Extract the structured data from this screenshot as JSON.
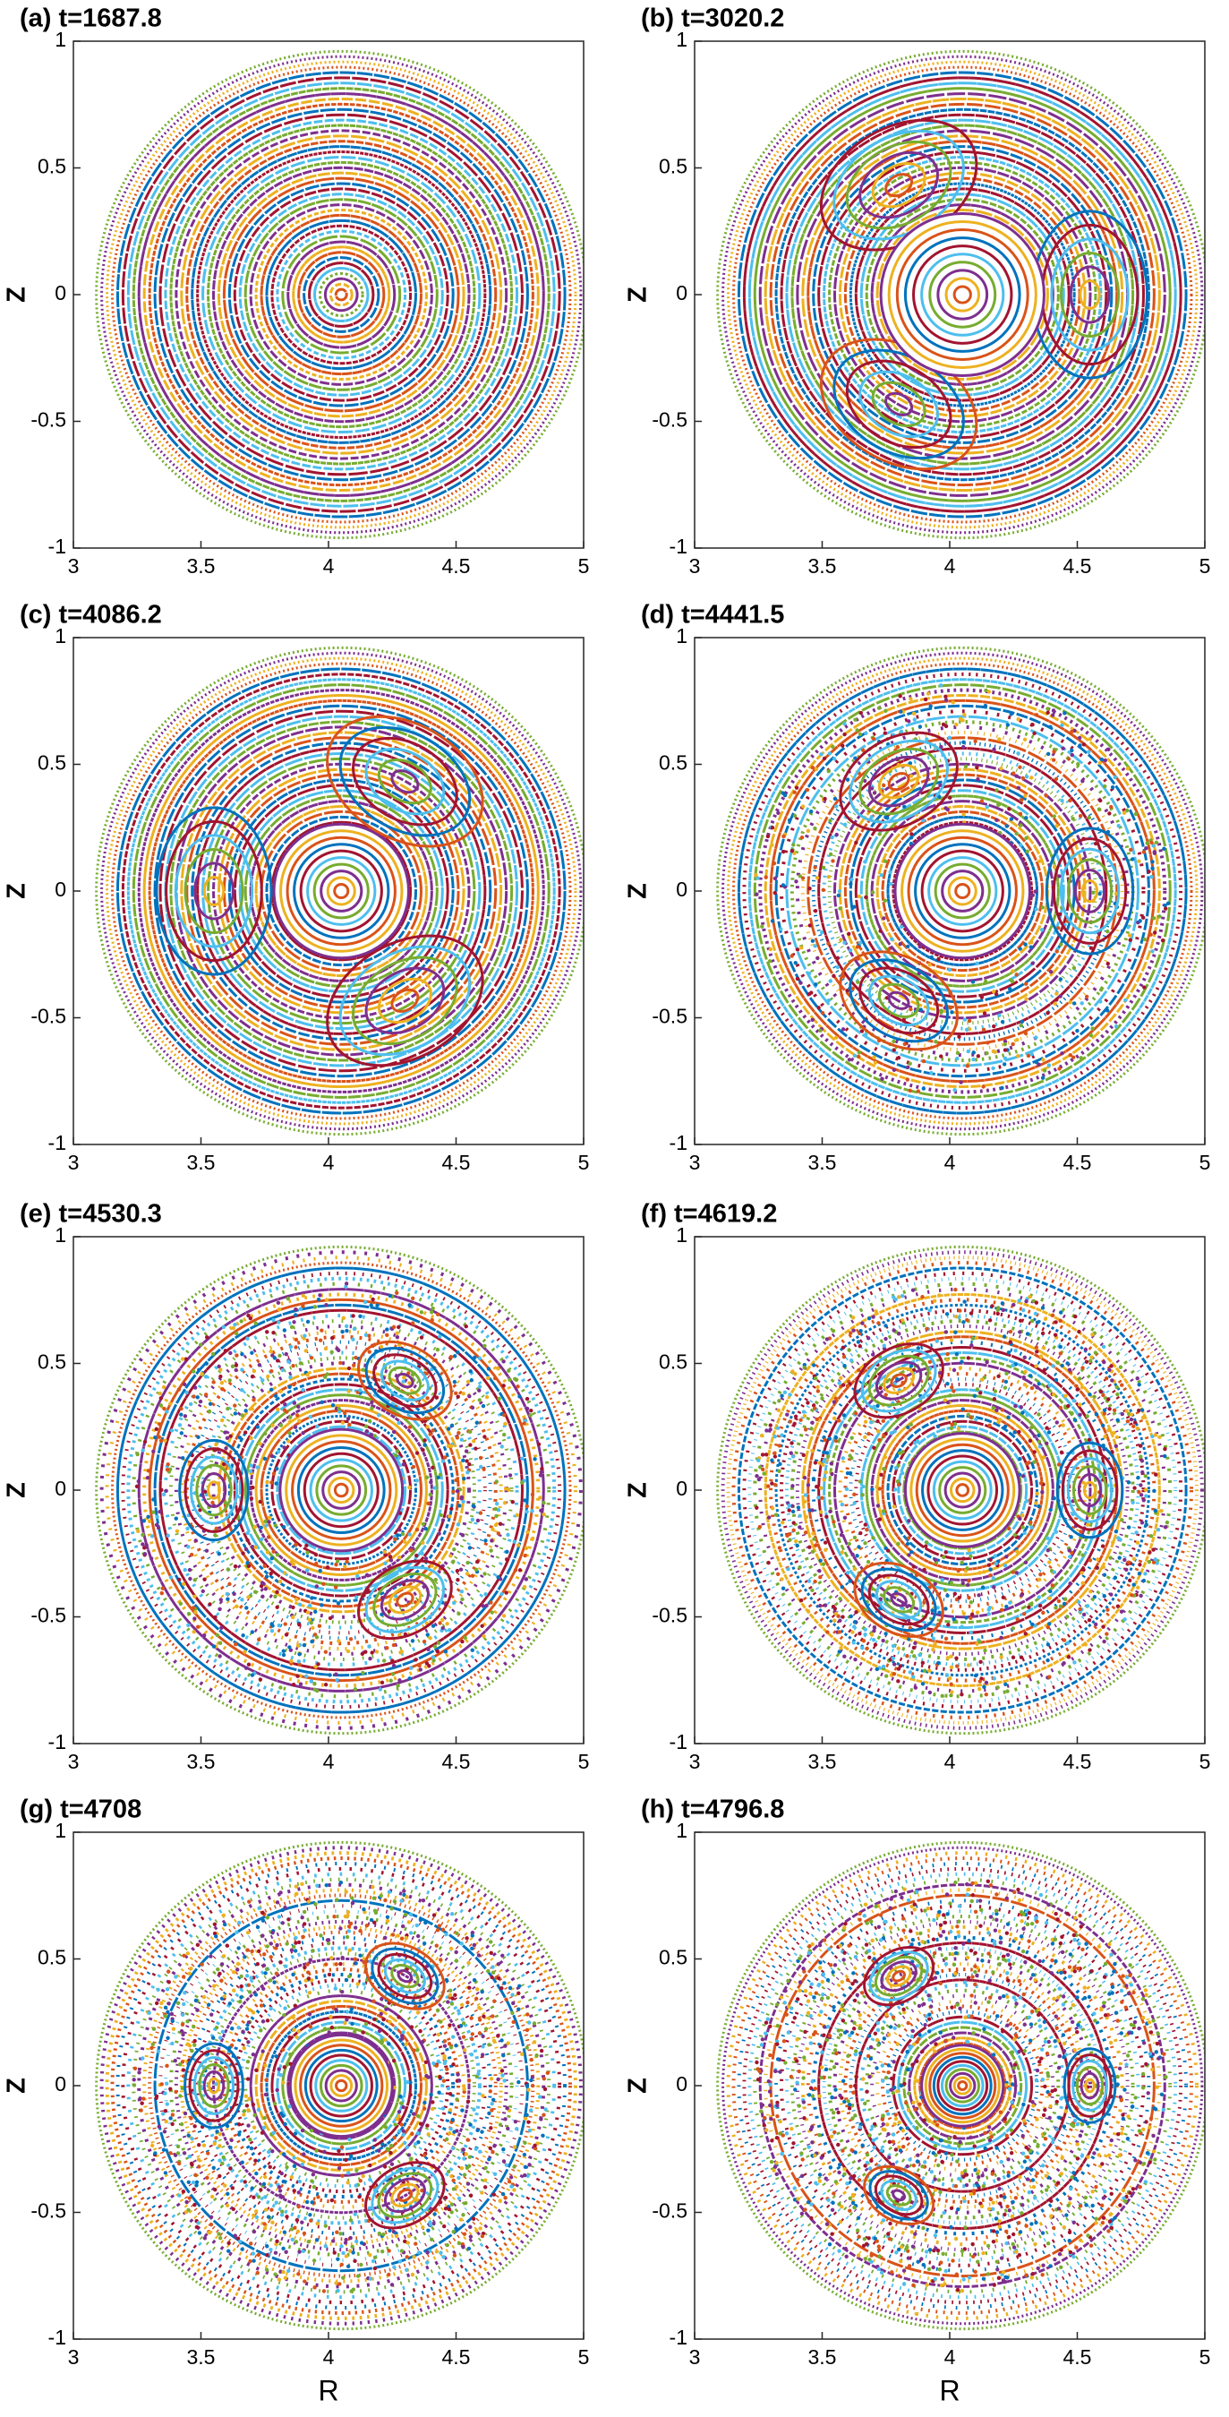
{
  "chart_data": [
    {
      "type": "scatter",
      "title": "(a) t=1687.8",
      "ylabel": "Z",
      "xlim": [
        3,
        5
      ],
      "ylim": [
        -1,
        1
      ],
      "xticks": [
        3,
        3.5,
        4,
        4.5,
        5
      ],
      "yticks": [
        -1,
        -0.5,
        0,
        0.5,
        1
      ]
    },
    {
      "type": "scatter",
      "title": "(b) t=3020.2",
      "ylabel": "Z",
      "xlim": [
        3,
        5
      ],
      "ylim": [
        -1,
        1
      ],
      "xticks": [
        3,
        3.5,
        4,
        4.5,
        5
      ],
      "yticks": [
        -1,
        -0.5,
        0,
        0.5,
        1
      ]
    },
    {
      "type": "scatter",
      "title": "(c) t=4086.2",
      "ylabel": "Z",
      "xlim": [
        3,
        5
      ],
      "ylim": [
        -1,
        1
      ],
      "xticks": [
        3,
        3.5,
        4,
        4.5,
        5
      ],
      "yticks": [
        -1,
        -0.5,
        0,
        0.5,
        1
      ]
    },
    {
      "type": "scatter",
      "title": "(d) t=4441.5",
      "ylabel": "Z",
      "xlim": [
        3,
        5
      ],
      "ylim": [
        -1,
        1
      ],
      "xticks": [
        3,
        3.5,
        4,
        4.5,
        5
      ],
      "yticks": [
        -1,
        -0.5,
        0,
        0.5,
        1
      ]
    },
    {
      "type": "scatter",
      "title": "(e) t=4530.3",
      "ylabel": "Z",
      "xlim": [
        3,
        5
      ],
      "ylim": [
        -1,
        1
      ],
      "xticks": [
        3,
        3.5,
        4,
        4.5,
        5
      ],
      "yticks": [
        -1,
        -0.5,
        0,
        0.5,
        1
      ]
    },
    {
      "type": "scatter",
      "title": "(f) t=4619.2",
      "ylabel": "Z",
      "xlim": [
        3,
        5
      ],
      "ylim": [
        -1,
        1
      ],
      "xticks": [
        3,
        3.5,
        4,
        4.5,
        5
      ],
      "yticks": [
        -1,
        -0.5,
        0,
        0.5,
        1
      ]
    },
    {
      "type": "scatter",
      "title": "(g) t=4708",
      "ylabel": "Z",
      "xlabel": "R",
      "xlim": [
        3,
        5
      ],
      "ylim": [
        -1,
        1
      ],
      "xticks": [
        3,
        3.5,
        4,
        4.5,
        5
      ],
      "yticks": [
        -1,
        -0.5,
        0,
        0.5,
        1
      ]
    },
    {
      "type": "scatter",
      "title": "(h) t=4796.8",
      "ylabel": "Z",
      "xlabel": "R",
      "xlim": [
        3,
        5
      ],
      "ylim": [
        -1,
        1
      ],
      "xticks": [
        3,
        3.5,
        4,
        4.5,
        5
      ],
      "yticks": [
        -1,
        -0.5,
        0,
        0.5,
        1
      ]
    }
  ]
}
